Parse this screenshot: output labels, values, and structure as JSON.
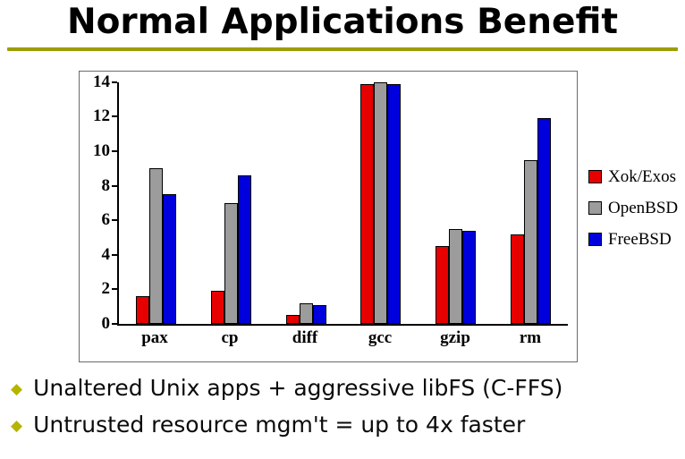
{
  "slide": {
    "title": "Normal Applications Benefit",
    "accent_color": "#9d9d00",
    "bullet_color": "#b5b500",
    "bullets": [
      {
        "text": "Unaltered Unix apps + aggressive libFS (C-FFS)"
      },
      {
        "text": "Untrusted resource mgm't = up to 4x faster"
      }
    ]
  },
  "chart_data": {
    "type": "bar",
    "title": "",
    "xlabel": "",
    "ylabel": "",
    "categories": [
      "pax",
      "cp",
      "diff",
      "gcc",
      "gzip",
      "rm"
    ],
    "series": [
      {
        "name": "Xok/Exos",
        "color": "#e60000",
        "values": [
          1.6,
          1.9,
          0.5,
          13.9,
          4.5,
          5.2
        ]
      },
      {
        "name": "OpenBSD",
        "color": "#9c9c9c",
        "values": [
          9.0,
          7.0,
          1.2,
          14.0,
          5.5,
          9.5
        ]
      },
      {
        "name": "FreeBSD",
        "color": "#0000dd",
        "values": [
          7.5,
          8.6,
          1.1,
          13.9,
          5.4,
          11.9
        ]
      }
    ],
    "ylim": [
      0,
      14
    ],
    "ytick_step": 2,
    "grid": false,
    "legend_position": "right"
  }
}
